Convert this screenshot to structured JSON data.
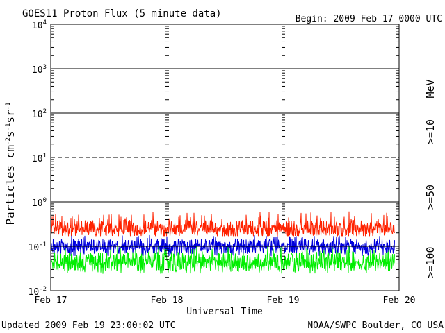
{
  "chart_data": {
    "type": "line",
    "title": "GOES11 Proton Flux (5 minute data)",
    "begin_label": "Begin: 2009 Feb 17 0000 UTC",
    "xlabel": "Universal Time",
    "ylabel_parts": {
      "base": "Particles cm",
      "exp1": "-2",
      "s": "s",
      "exp2": "-1",
      "sr": "sr",
      "exp3": "-1"
    },
    "y_scale": "log",
    "ylim": [
      0.01,
      10000
    ],
    "y_ticks": [
      {
        "base": "10",
        "exp": "4",
        "value": 10000
      },
      {
        "base": "10",
        "exp": "3",
        "value": 1000
      },
      {
        "base": "10",
        "exp": "2",
        "value": 100
      },
      {
        "base": "10",
        "exp": "1",
        "value": 10
      },
      {
        "base": "10",
        "exp": "0",
        "value": 1
      },
      {
        "base": "10",
        "exp": "-1",
        "value": 0.1
      },
      {
        "base": "10",
        "exp": "-2",
        "value": 0.01
      }
    ],
    "x_ticks": [
      "Feb 17",
      "Feb 18",
      "Feb 19",
      "Feb 20"
    ],
    "xlim_days": [
      0,
      3
    ],
    "grid": {
      "solid_levels": [
        1000,
        100,
        1,
        0.1
      ],
      "dashed_levels": [
        10
      ]
    },
    "legend_unit": "MeV",
    "series": [
      {
        "name": ">=10",
        "color": "#ff2200",
        "range": [
          0.17,
          0.62
        ],
        "typical": 0.25
      },
      {
        "name": ">=50",
        "color": "#0000dd",
        "range": [
          0.06,
          0.18
        ],
        "typical": 0.1
      },
      {
        "name": ">=100",
        "color": "#00ee00",
        "range": [
          0.024,
          0.1
        ],
        "typical": 0.045
      }
    ]
  },
  "footer": {
    "updated": "Updated 2009 Feb 19 23:00:02 UTC",
    "credit": "NOAA/SWPC Boulder, CO USA"
  }
}
